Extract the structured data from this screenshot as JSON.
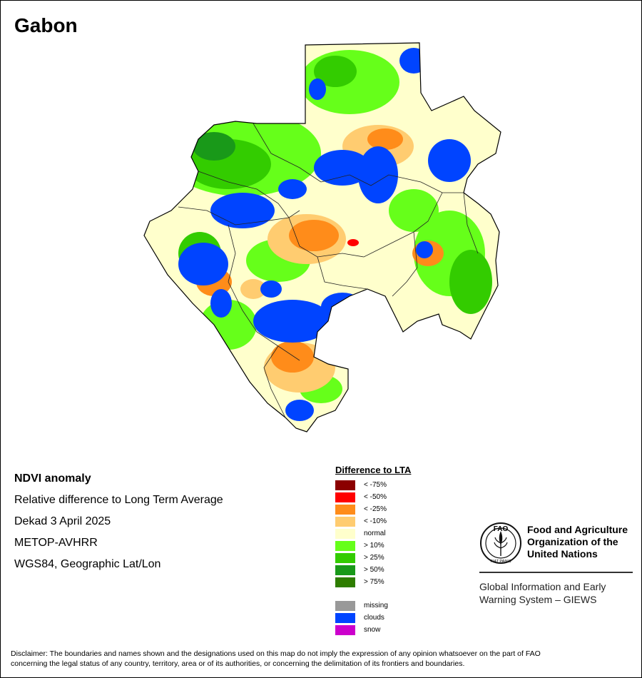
{
  "map": {
    "title": "Gabon"
  },
  "info": {
    "heading": "NDVI anomaly",
    "lines": [
      "Relative difference to Long Term Average",
      "Dekad 3 April 2025",
      "METOP-AVHRR",
      "WGS84, Geographic Lat/Lon"
    ]
  },
  "legend": {
    "title": "Difference to LTA",
    "classes": [
      {
        "label": "< -75%",
        "color": "#8b0000"
      },
      {
        "label": "< -50%",
        "color": "#ff0000"
      },
      {
        "label": "< -25%",
        "color": "#ff8c1a"
      },
      {
        "label": "< -10%",
        "color": "#ffcc70"
      },
      {
        "label": "normal",
        "color": "#ffffcc"
      },
      {
        "label": "> 10%",
        "color": "#66ff1a"
      },
      {
        "label": "> 25%",
        "color": "#33cc00"
      },
      {
        "label": "> 50%",
        "color": "#199919"
      },
      {
        "label": "> 75%",
        "color": "#2e7d00"
      }
    ],
    "extra": [
      {
        "label": "missing",
        "color": "#999999"
      },
      {
        "label": "clouds",
        "color": "#0044ff"
      },
      {
        "label": "snow",
        "color": "#cc00cc"
      }
    ]
  },
  "org": {
    "name_lines": [
      "Food and Agriculture",
      "Organization of the",
      "United Nations"
    ],
    "system_lines": [
      "Global Information and Early",
      "Warning System – GIEWS"
    ],
    "logo_letters": "FAO",
    "logo_motto": "FIAT PANIS"
  },
  "disclaimer": [
    "Disclaimer: The boundaries and names shown and the designations used on this map do not imply the expression of any opinion whatsoever on the part of FAO",
    "concerning the legal status of any country, territory, area or of its authorities, or concerning the delimitation of its frontiers and boundaries."
  ]
}
